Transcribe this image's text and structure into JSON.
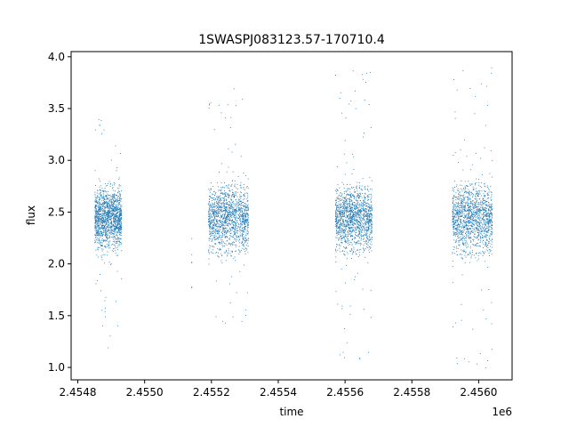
{
  "chart_data": {
    "type": "scatter",
    "title": "1SWASPJ083123.57-170710.4",
    "xlabel": "time",
    "ylabel": "flux",
    "x_offset_label": "1e6",
    "xlim": [
      2.45478,
      2.4561
    ],
    "ylim": [
      0.88,
      4.05
    ],
    "x_ticks": [
      2.4548,
      2.455,
      2.4552,
      2.4554,
      2.4556,
      2.4558,
      2.456
    ],
    "x_tick_labels": [
      "2.4548",
      "2.4550",
      "2.4552",
      "2.4554",
      "2.4556",
      "2.4558",
      "2.4560"
    ],
    "y_ticks": [
      1.0,
      1.5,
      2.0,
      2.5,
      3.0,
      3.5,
      4.0
    ],
    "y_tick_labels": [
      "1.0",
      "1.5",
      "2.0",
      "2.5",
      "3.0",
      "3.5",
      "4.0"
    ],
    "grid": false,
    "marker_color": "#1f77b4",
    "clusters": [
      {
        "x_start": 2.45485,
        "x_end": 2.45493,
        "flux_median": 2.45,
        "core_range": [
          2.0,
          2.95
        ],
        "outlier_range": [
          1.1,
          3.45
        ]
      },
      {
        "x_start": 2.45514,
        "x_end": 2.45514,
        "flux_median": 2.0,
        "core_range": [
          1.5,
          2.4
        ],
        "outlier_range": [
          1.5,
          2.4
        ]
      },
      {
        "x_start": 2.45519,
        "x_end": 2.45531,
        "flux_median": 2.45,
        "core_range": [
          1.95,
          3.0
        ],
        "outlier_range": [
          1.25,
          3.75
        ]
      },
      {
        "x_start": 2.45557,
        "x_end": 2.45568,
        "flux_median": 2.45,
        "core_range": [
          2.0,
          3.0
        ],
        "outlier_range": [
          1.03,
          3.87
        ]
      },
      {
        "x_start": 2.45592,
        "x_end": 2.45604,
        "flux_median": 2.45,
        "core_range": [
          1.95,
          3.05
        ],
        "outlier_range": [
          1.0,
          3.9
        ]
      }
    ]
  }
}
